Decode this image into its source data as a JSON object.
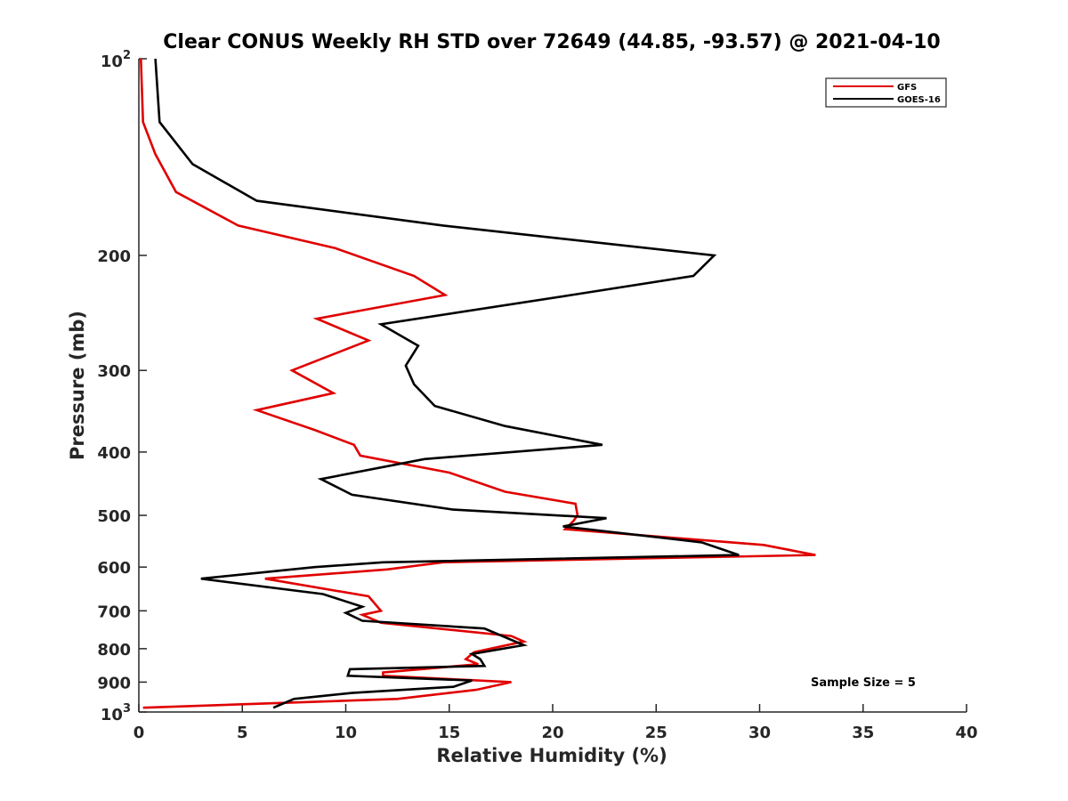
{
  "chart_data": {
    "type": "line",
    "title": "Clear CONUS Weekly RH STD over 72649 (44.85, -93.57) @ 2021-04-10",
    "xlabel": "Relative Humidity (%)",
    "ylabel": "Pressure (mb)",
    "xlim": [
      0,
      40
    ],
    "ylim": [
      100,
      1000
    ],
    "y_scale": "log",
    "y_reversed": true,
    "x_ticks": [
      "0",
      "5",
      "10",
      "15",
      "20",
      "25",
      "30",
      "35",
      "40"
    ],
    "y_ticks": [
      {
        "value": 100,
        "base": "10",
        "exp": "2"
      },
      {
        "value": 200,
        "label": "200"
      },
      {
        "value": 300,
        "label": "300"
      },
      {
        "value": 400,
        "label": "400"
      },
      {
        "value": 500,
        "label": "500"
      },
      {
        "value": 600,
        "label": "600"
      },
      {
        "value": 700,
        "label": "700"
      },
      {
        "value": 800,
        "label": "800"
      },
      {
        "value": 900,
        "label": "900"
      },
      {
        "value": 1000,
        "base": "10",
        "exp": "3"
      }
    ],
    "legend_position": "top-right",
    "grid": false,
    "annotation": "Sample Size = 5",
    "series": [
      {
        "name": "GFS",
        "color": "#e00000",
        "points": [
          [
            0.1,
            100
          ],
          [
            0.2,
            125
          ],
          [
            0.8,
            140
          ],
          [
            1.8,
            160
          ],
          [
            4.8,
            180
          ],
          [
            9.5,
            195
          ],
          [
            13.3,
            215
          ],
          [
            14.8,
            230
          ],
          [
            8.6,
            250
          ],
          [
            11.1,
            270
          ],
          [
            7.4,
            300
          ],
          [
            9.4,
            325
          ],
          [
            5.7,
            345
          ],
          [
            8.5,
            370
          ],
          [
            10.4,
            390
          ],
          [
            10.7,
            405
          ],
          [
            15.0,
            430
          ],
          [
            17.7,
            460
          ],
          [
            21.1,
            480
          ],
          [
            21.2,
            500
          ],
          [
            21.0,
            510
          ],
          [
            20.6,
            525
          ],
          [
            30.2,
            555
          ],
          [
            32.7,
            575
          ],
          [
            14.7,
            590
          ],
          [
            12.0,
            605
          ],
          [
            6.1,
            625
          ],
          [
            11.1,
            665
          ],
          [
            11.7,
            700
          ],
          [
            10.8,
            710
          ],
          [
            11.7,
            730
          ],
          [
            18.0,
            765
          ],
          [
            18.6,
            780
          ],
          [
            16.2,
            810
          ],
          [
            15.8,
            830
          ],
          [
            16.4,
            845
          ],
          [
            11.8,
            870
          ],
          [
            11.8,
            880
          ],
          [
            18.0,
            900
          ],
          [
            16.3,
            925
          ],
          [
            12.5,
            955
          ],
          [
            0.2,
            985
          ]
        ]
      },
      {
        "name": "GOES-16",
        "color": "#000000",
        "points": [
          [
            0.8,
            100
          ],
          [
            1.0,
            125
          ],
          [
            2.6,
            145
          ],
          [
            5.7,
            165
          ],
          [
            14.7,
            180
          ],
          [
            27.8,
            200
          ],
          [
            26.8,
            215
          ],
          [
            20.9,
            230
          ],
          [
            11.7,
            255
          ],
          [
            13.5,
            275
          ],
          [
            12.9,
            295
          ],
          [
            13.3,
            315
          ],
          [
            14.3,
            340
          ],
          [
            17.7,
            365
          ],
          [
            22.4,
            390
          ],
          [
            13.8,
            410
          ],
          [
            8.8,
            440
          ],
          [
            10.3,
            465
          ],
          [
            15.2,
            490
          ],
          [
            22.6,
            505
          ],
          [
            20.5,
            520
          ],
          [
            27.2,
            550
          ],
          [
            29.0,
            575
          ],
          [
            11.8,
            590
          ],
          [
            8.5,
            600
          ],
          [
            3.0,
            625
          ],
          [
            8.9,
            660
          ],
          [
            10.8,
            690
          ],
          [
            10.0,
            705
          ],
          [
            10.8,
            725
          ],
          [
            16.7,
            745
          ],
          [
            18.6,
            790
          ],
          [
            16.1,
            815
          ],
          [
            16.5,
            830
          ],
          [
            16.7,
            850
          ],
          [
            10.2,
            860
          ],
          [
            10.1,
            880
          ],
          [
            16.1,
            895
          ],
          [
            15.2,
            915
          ],
          [
            10.3,
            935
          ],
          [
            7.5,
            955
          ],
          [
            6.5,
            985
          ]
        ]
      }
    ]
  }
}
